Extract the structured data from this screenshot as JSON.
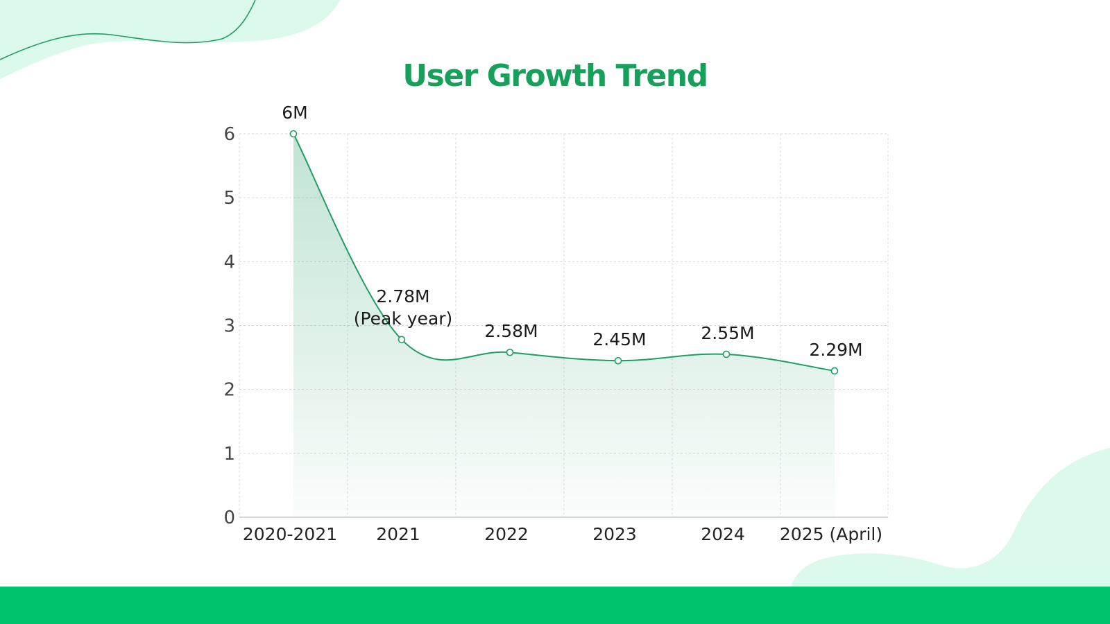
{
  "page": {
    "colors": {
      "accent": "#16a05a",
      "line": "#1f9e63",
      "bottom_bar": "#00c36d",
      "blob": "#dcfaeb"
    }
  },
  "chart_data": {
    "type": "area",
    "title": "User Growth Trend",
    "xlabel": "",
    "ylabel": "",
    "categories": [
      "2020-2021",
      "2021",
      "2022",
      "2023",
      "2024",
      "2025 (April)"
    ],
    "series": [
      {
        "values": [
          6,
          2.78,
          2.58,
          2.45,
          2.55,
          2.29
        ]
      }
    ],
    "data_labels": [
      "6M",
      "2.78M\n(Peak year)",
      "2.58M",
      "2.45M",
      "2.55M",
      "2.29M"
    ],
    "y_ticks": [
      "0",
      "1",
      "2",
      "3",
      "4",
      "5",
      "6"
    ],
    "ylim": [
      0,
      6
    ],
    "grid": true,
    "legend": "none"
  }
}
